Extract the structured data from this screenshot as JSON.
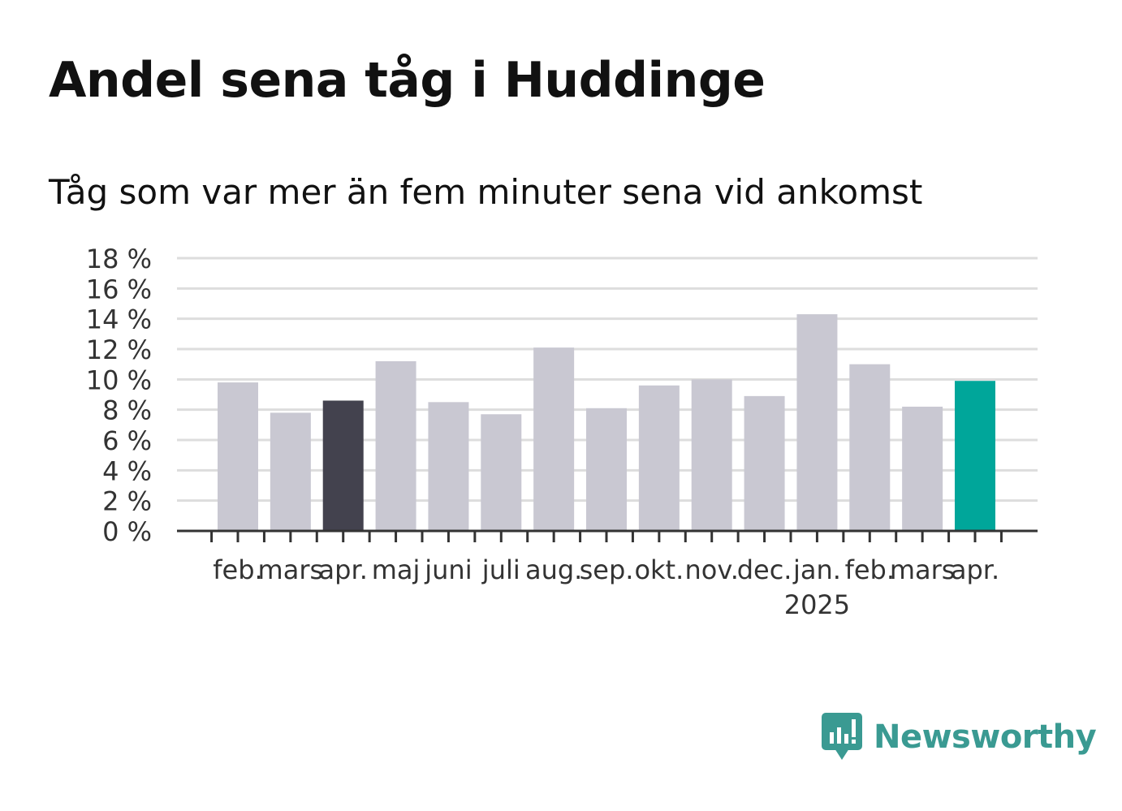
{
  "title": "Andel sena tåg i Huddinge",
  "subtitle": "Tåg som var mer än fem minuter sena vid ankomst",
  "brand": {
    "name": "Newsworthy",
    "color": "#3a9a92",
    "icon": "newsworthy-logo-icon"
  },
  "colors": {
    "default_bar": "#c9c8d2",
    "highlight_prev_year": "#43424e",
    "highlight_current": "#00a69a",
    "grid": "#dddddd",
    "axis": "#333333"
  },
  "chart_data": {
    "type": "bar",
    "categories": [
      "feb.",
      "mars",
      "apr.",
      "maj",
      "juni",
      "juli",
      "aug.",
      "sep.",
      "okt.",
      "nov.",
      "dec.",
      "jan.",
      "feb.",
      "mars",
      "apr."
    ],
    "year_labels": [
      {
        "index": 11,
        "label": "2025"
      }
    ],
    "values": [
      9.8,
      7.8,
      8.6,
      11.2,
      8.5,
      7.7,
      12.1,
      8.1,
      9.6,
      10.0,
      8.9,
      14.3,
      11.0,
      8.2,
      9.9
    ],
    "highlights": [
      {
        "index": 2,
        "color": "#43424e"
      },
      {
        "index": 14,
        "color": "#00a69a"
      }
    ],
    "ylim": [
      0,
      18
    ],
    "yticks": [
      0,
      2,
      4,
      6,
      8,
      10,
      12,
      14,
      16,
      18
    ],
    "ytick_labels": [
      "0 %",
      "2 %",
      "4 %",
      "6 %",
      "8 %",
      "10 %",
      "12 %",
      "14 %",
      "16 %",
      "18 %"
    ],
    "xlabel": "",
    "ylabel": "",
    "grid": true
  }
}
